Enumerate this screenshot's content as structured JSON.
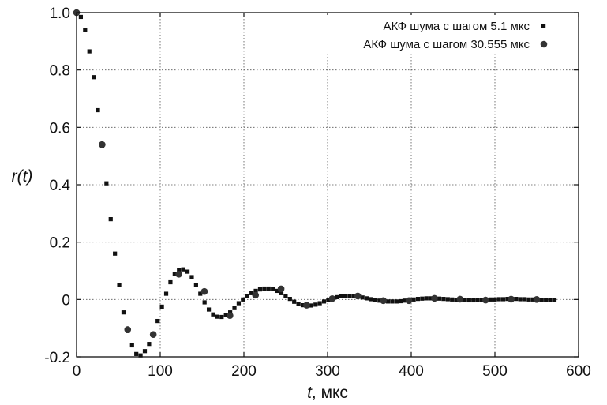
{
  "chart_data": {
    "type": "scatter",
    "xlabel_italic": "t",
    "xlabel_rest": ", мкс",
    "ylabel": "r(t)",
    "xlim": [
      0,
      600
    ],
    "ylim": [
      -0.2,
      1.0
    ],
    "xticks": [
      0,
      100,
      200,
      300,
      400,
      500,
      600
    ],
    "yticks": [
      -0.2,
      0,
      0.2,
      0.4,
      0.6,
      0.8,
      1.0
    ],
    "xtick_labels": [
      "0",
      "100",
      "200",
      "300",
      "400",
      "500",
      "600"
    ],
    "ytick_labels": [
      "-0.2",
      "0",
      "0.2",
      "0.4",
      "0.6",
      "0.8",
      "1.0"
    ],
    "grid": true,
    "legend_position": "top-right",
    "series": [
      {
        "name": "АКФ шума с шагом 5.1 мкс",
        "marker": "square",
        "color": "#111111",
        "x": [
          0,
          5.1,
          10.2,
          15.3,
          20.4,
          25.5,
          30.6,
          35.7,
          40.8,
          45.9,
          51.0,
          56.1,
          61.2,
          66.3,
          71.4,
          76.5,
          81.6,
          86.7,
          91.8,
          96.9,
          102.0,
          107.1,
          112.2,
          117.3,
          122.4,
          127.5,
          132.6,
          137.7,
          142.8,
          147.9,
          153.0,
          158.1,
          163.2,
          168.3,
          173.4,
          178.5,
          183.6,
          188.7,
          193.8,
          198.9,
          204.0,
          209.1,
          214.2,
          219.3,
          224.4,
          229.5,
          234.6,
          239.7,
          244.8,
          249.9,
          255.0,
          260.1,
          265.2,
          270.3,
          275.4,
          280.5,
          285.6,
          290.7,
          295.8,
          300.9,
          306.0,
          311.1,
          316.2,
          321.3,
          326.4,
          331.5,
          336.6,
          341.7,
          346.8,
          351.9,
          357.0,
          362.1,
          367.2,
          372.3,
          377.4,
          382.5,
          387.6,
          392.7,
          397.8,
          402.9,
          408.0,
          413.1,
          418.2,
          423.3,
          428.4,
          433.5,
          438.6,
          443.7,
          448.8,
          453.9,
          459.0,
          464.1,
          469.2,
          474.3,
          479.4,
          484.5,
          489.6,
          494.7,
          499.8,
          504.9,
          510.0,
          515.1,
          520.2,
          525.3,
          530.4,
          535.5,
          540.6,
          545.7,
          550.8,
          555.9,
          561.0,
          566.1,
          571.2
        ],
        "y": [
          1.0,
          0.985,
          0.94,
          0.865,
          0.775,
          0.66,
          0.535,
          0.405,
          0.28,
          0.16,
          0.05,
          -0.045,
          -0.11,
          -0.16,
          -0.19,
          -0.195,
          -0.18,
          -0.155,
          -0.12,
          -0.075,
          -0.025,
          0.02,
          0.06,
          0.09,
          0.103,
          0.105,
          0.097,
          0.078,
          0.05,
          0.02,
          -0.01,
          -0.035,
          -0.052,
          -0.06,
          -0.061,
          -0.055,
          -0.045,
          -0.03,
          -0.013,
          0.0,
          0.012,
          0.022,
          0.03,
          0.035,
          0.038,
          0.038,
          0.036,
          0.03,
          0.022,
          0.012,
          0.002,
          -0.008,
          -0.015,
          -0.02,
          -0.022,
          -0.021,
          -0.018,
          -0.013,
          -0.007,
          -0.001,
          0.004,
          0.008,
          0.011,
          0.013,
          0.013,
          0.012,
          0.01,
          0.007,
          0.004,
          0.001,
          -0.002,
          -0.004,
          -0.006,
          -0.007,
          -0.007,
          -0.007,
          -0.006,
          -0.004,
          -0.002,
          0.0,
          0.002,
          0.003,
          0.004,
          0.004,
          0.004,
          0.003,
          0.002,
          0.001,
          0.0,
          -0.001,
          -0.002,
          -0.002,
          -0.003,
          -0.003,
          -0.002,
          -0.002,
          -0.001,
          0.0,
          0.0,
          0.001,
          0.001,
          0.002,
          0.002,
          0.002,
          0.001,
          0.001,
          0.0,
          0.0,
          -0.001,
          -0.001,
          -0.001,
          -0.001,
          -0.001
        ]
      },
      {
        "name": "АКФ шума с шагом 30.555 мкс",
        "marker": "circle",
        "color": "#333333",
        "x": [
          0,
          30.555,
          61.11,
          91.665,
          122.22,
          152.775,
          183.33,
          213.885,
          244.44,
          274.995,
          305.55,
          336.105,
          366.66,
          397.215,
          427.77,
          458.325,
          488.88,
          519.435,
          549.99
        ],
        "y": [
          1.0,
          0.54,
          -0.105,
          -0.122,
          0.088,
          0.028,
          -0.056,
          0.015,
          0.037,
          -0.02,
          0.003,
          0.012,
          -0.004,
          -0.004,
          0.004,
          0.001,
          -0.002,
          0.001,
          0.0
        ]
      }
    ]
  }
}
